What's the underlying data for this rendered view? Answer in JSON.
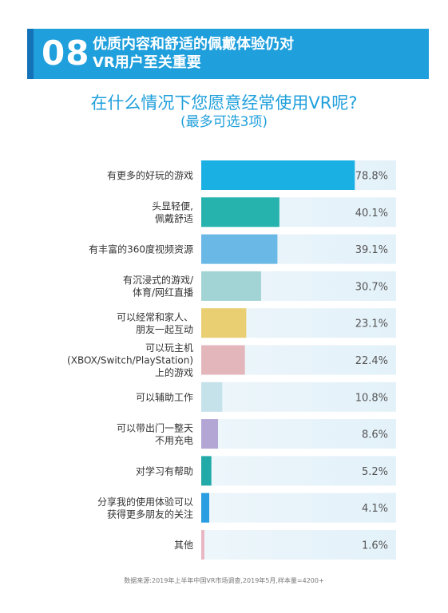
{
  "header": {
    "number": "08",
    "title_line1": "优质内容和舒适的佩戴体验仍对",
    "title_line2": "VR用户至关重要"
  },
  "question": {
    "line1": "在什么情况下您愿意经常使用VR呢?",
    "line2": "(最多可选3项)"
  },
  "source": "数据来源:2019年上半年中国VR市场调查,2019年5月,样本量=4200+",
  "chart_data": {
    "type": "bar",
    "orientation": "horizontal",
    "title": "",
    "xlabel": "",
    "ylabel": "",
    "xlim": [
      0,
      100
    ],
    "categories": [
      [
        "有更多的好玩的游戏"
      ],
      [
        "头显轻便,",
        "佩戴舒适"
      ],
      [
        "有丰富的360度视频资源"
      ],
      [
        "有沉浸式的游戏/",
        "体育/网红直播"
      ],
      [
        "可以经常和家人、",
        "朋友一起互动"
      ],
      [
        "可以玩主机",
        "(XBOX/Switch/PlayStation)",
        "上的游戏"
      ],
      [
        "可以辅助工作"
      ],
      [
        "可以带出门一整天",
        "不用充电"
      ],
      [
        "对学习有帮助"
      ],
      [
        "分享我的使用体验可以",
        "获得更多朋友的关注"
      ],
      [
        "其他"
      ]
    ],
    "values": [
      78.8,
      40.1,
      39.1,
      30.7,
      23.1,
      22.4,
      10.8,
      8.6,
      5.2,
      4.1,
      1.6
    ],
    "value_labels": [
      "78.8%",
      "40.1%",
      "39.1%",
      "30.7%",
      "23.1%",
      "22.4%",
      "10.8%",
      "8.6%",
      "5.2%",
      "4.1%",
      "1.6%"
    ],
    "colors": [
      "#1ab0e3",
      "#27b3ad",
      "#6ab8e6",
      "#a2d4d5",
      "#e9cf72",
      "#e3b6bb",
      "#c5e2ea",
      "#b3a5d4",
      "#22aaa9",
      "#2a9ee0",
      "#e8b6c3"
    ],
    "track_color": "#e3f1f9"
  }
}
